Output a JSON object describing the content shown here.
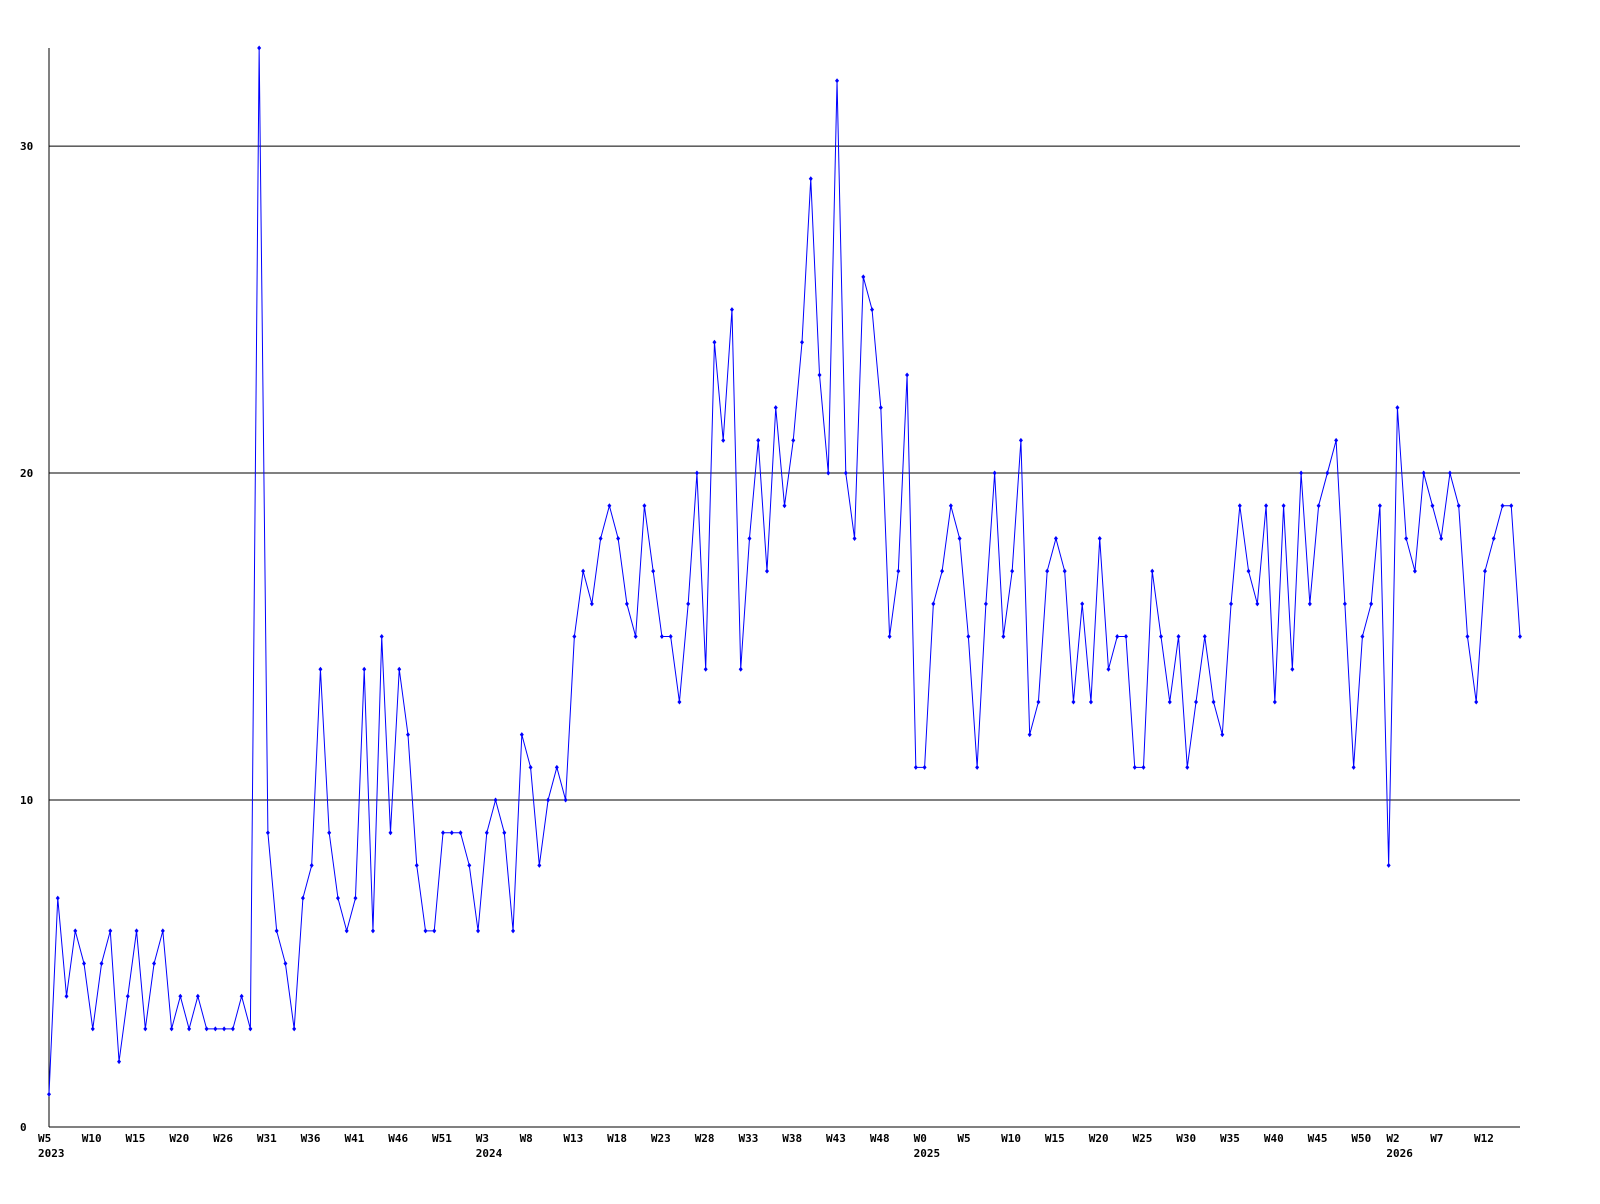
{
  "chart_data": {
    "type": "line",
    "color": "#0000ff",
    "ylim": [
      0,
      33
    ],
    "yticks": [
      0,
      10,
      20,
      30
    ],
    "grid": true,
    "categories": [
      "W5",
      null,
      null,
      null,
      null,
      "W10",
      null,
      null,
      null,
      null,
      "W15",
      null,
      null,
      null,
      null,
      "W20",
      null,
      null,
      null,
      null,
      "W26",
      null,
      null,
      null,
      null,
      "W31",
      null,
      null,
      null,
      null,
      "W36",
      null,
      null,
      null,
      null,
      "W41",
      null,
      null,
      null,
      null,
      "W46",
      null,
      null,
      null,
      null,
      "W51",
      null,
      null,
      null,
      null,
      "W3",
      null,
      null,
      null,
      null,
      "W8",
      null,
      null,
      null,
      null,
      "W13",
      null,
      null,
      null,
      null,
      "W18",
      null,
      null,
      null,
      null,
      "W23",
      null,
      null,
      null,
      null,
      "W28",
      null,
      null,
      null,
      null,
      "W33",
      null,
      null,
      null,
      null,
      "W38",
      null,
      null,
      null,
      null,
      "W43",
      null,
      null,
      null,
      null,
      "W48",
      null,
      null,
      null,
      null,
      "W0",
      null,
      null,
      null,
      null,
      "W5",
      null,
      null,
      null,
      null,
      "W10",
      null,
      null,
      null,
      null,
      "W15",
      null,
      null,
      null,
      null,
      "W20",
      null,
      null,
      null,
      null,
      "W25",
      null,
      null,
      null,
      null,
      "W30",
      null,
      null,
      null,
      null,
      "W35",
      null,
      null,
      null,
      null,
      "W40",
      null,
      null,
      null,
      null,
      "W45",
      null,
      null,
      null,
      null,
      "W50",
      null,
      null,
      null,
      "W2",
      null,
      null,
      null,
      null,
      "W7",
      null,
      null,
      null,
      null,
      "W12",
      null,
      null,
      null,
      null
    ],
    "years": [
      "2023",
      null,
      null,
      null,
      null,
      null,
      null,
      null,
      null,
      null,
      null,
      null,
      null,
      null,
      null,
      null,
      null,
      null,
      null,
      null,
      null,
      null,
      null,
      null,
      null,
      null,
      null,
      null,
      null,
      null,
      null,
      null,
      null,
      null,
      null,
      null,
      null,
      null,
      null,
      null,
      null,
      null,
      null,
      null,
      null,
      null,
      null,
      null,
      null,
      null,
      "2024",
      null,
      null,
      null,
      null,
      null,
      null,
      null,
      null,
      null,
      null,
      null,
      null,
      null,
      null,
      null,
      null,
      null,
      null,
      null,
      null,
      null,
      null,
      null,
      null,
      null,
      null,
      null,
      null,
      null,
      null,
      null,
      null,
      null,
      null,
      null,
      null,
      null,
      null,
      null,
      null,
      null,
      null,
      null,
      null,
      null,
      null,
      null,
      null,
      null,
      "2025",
      null,
      null,
      null,
      null,
      null,
      null,
      null,
      null,
      null,
      null,
      null,
      null,
      null,
      null,
      null,
      null,
      null,
      null,
      null,
      null,
      null,
      null,
      null,
      null,
      null,
      null,
      null,
      null,
      null,
      null,
      null,
      null,
      null,
      null,
      null,
      null,
      null,
      null,
      null,
      null,
      null,
      null,
      null,
      null,
      null,
      null,
      null,
      null,
      null,
      null,
      null,
      null,
      null,
      "2026",
      null,
      null,
      null,
      null,
      null,
      null,
      null,
      null,
      null,
      null,
      null,
      null,
      null,
      null
    ],
    "values": [
      1,
      7,
      4,
      6,
      5,
      3,
      5,
      6,
      2,
      4,
      6,
      3,
      5,
      6,
      3,
      4,
      3,
      4,
      3,
      3,
      3,
      3,
      4,
      3,
      33,
      9,
      6,
      5,
      3,
      7,
      8,
      14,
      9,
      7,
      6,
      7,
      14,
      6,
      15,
      9,
      14,
      12,
      8,
      6,
      6,
      9,
      9,
      9,
      8,
      6,
      9,
      10,
      9,
      6,
      12,
      11,
      8,
      10,
      11,
      10,
      15,
      17,
      16,
      18,
      19,
      18,
      16,
      15,
      19,
      17,
      15,
      15,
      13,
      16,
      20,
      14,
      24,
      21,
      25,
      14,
      18,
      21,
      17,
      22,
      19,
      21,
      24,
      29,
      23,
      20,
      32,
      20,
      18,
      26,
      25,
      22,
      15,
      17,
      23,
      11,
      11,
      16,
      17,
      19,
      18,
      15,
      11,
      16,
      20,
      15,
      17,
      21,
      12,
      13,
      17,
      18,
      17,
      13,
      16,
      13,
      18,
      14,
      15,
      15,
      11,
      11,
      17,
      15,
      13,
      15,
      11,
      13,
      15,
      13,
      12,
      16,
      19,
      17,
      16,
      19,
      13,
      19,
      14,
      20,
      16,
      19,
      20,
      21,
      16,
      11,
      15,
      16,
      19,
      8,
      22,
      18,
      17,
      20,
      19,
      18,
      20,
      19,
      15,
      13,
      17,
      18,
      19,
      19,
      15
    ]
  }
}
